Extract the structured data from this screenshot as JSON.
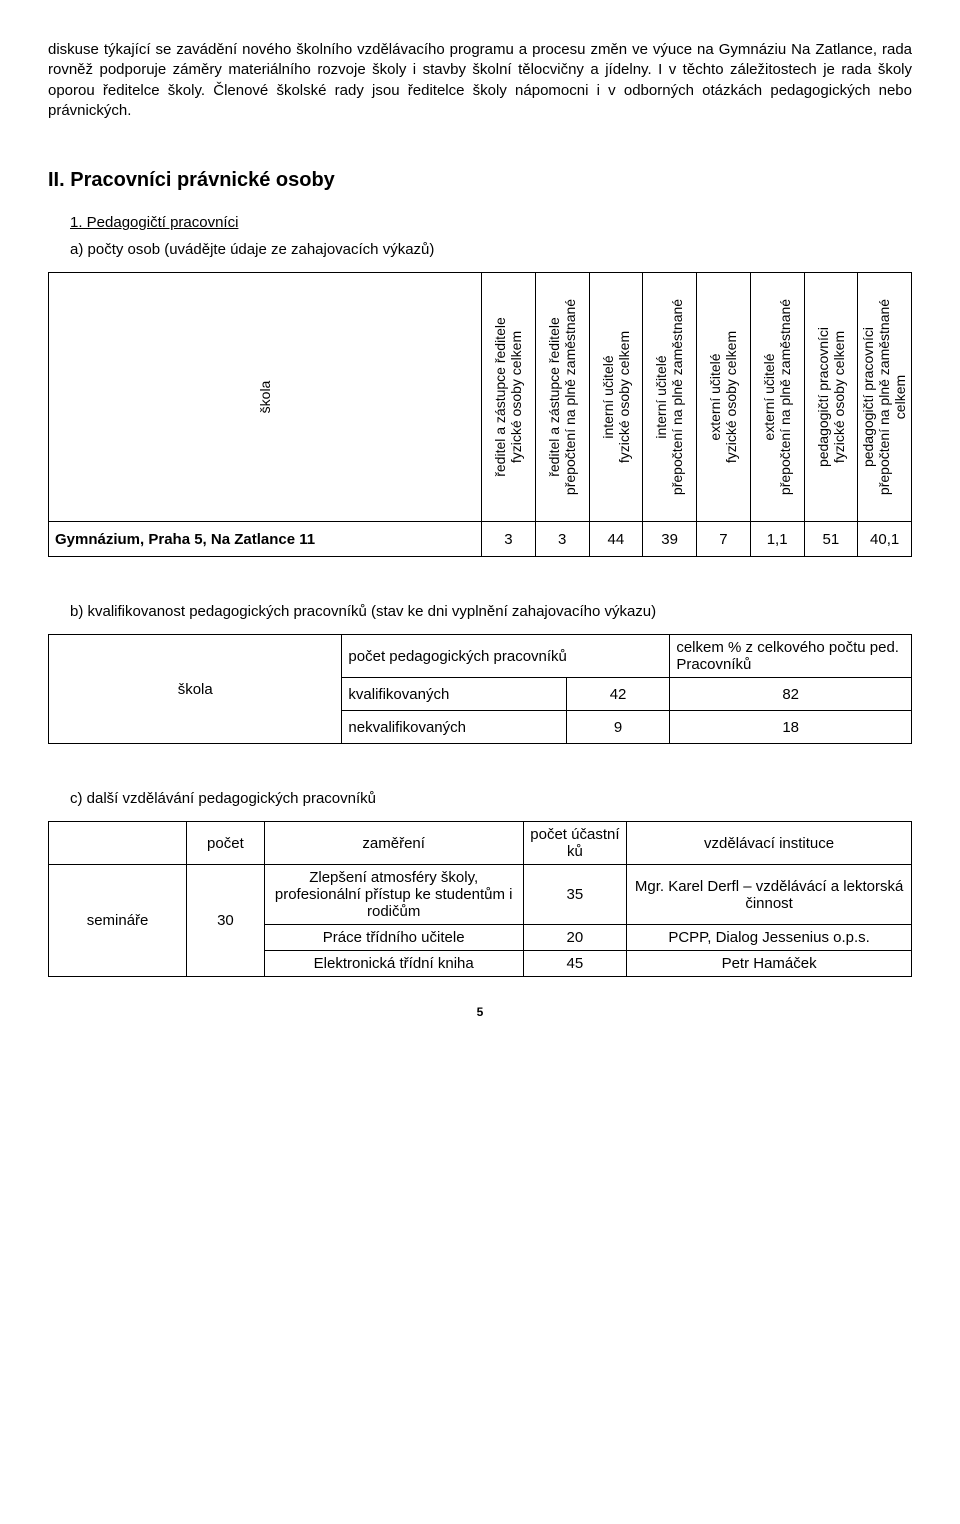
{
  "intro_para": "diskuse týkající se zavádění nového školního vzdělávacího programu a procesu změn ve výuce na Gymnáziu Na Zatlance, rada rovněž podporuje záměry materiálního rozvoje školy i stavby školní tělocvičny a jídelny. I v těchto záležitostech je rada školy oporou ředitelce školy. Členové školské rady jsou ředitelce školy nápomocni i v odborných otázkách pedagogických nebo právnických.",
  "section_title": "II. Pracovníci právnické osoby",
  "sub1_title": "1. Pedagogičtí pracovníci",
  "sub1a_title": "a) počty osob (uvádějte údaje ze zahajovacích výkazů)",
  "table_a": {
    "headers": [
      "škola",
      "ředitel a zástupce ředitele\nfyzické osoby celkem",
      "ředitel a zástupce ředitele\npřepočtení na plně zaměstnané",
      "interní učitelé\nfyzické osoby celkem",
      "interní učitelé\npřepočtení na plně zaměstnané",
      "externí učitelé\nfyzické osoby celkem",
      "externí učitelé\npřepočtení na plně zaměstnané",
      "pedagogičtí pracovníci\nfyzické osoby celkem",
      "pedagogičtí pracovníci\npřepočtení na plně zaměstnané\ncelkem"
    ],
    "row_label": "Gymnázium, Praha 5, Na Zatlance 11",
    "values": [
      "3",
      "3",
      "44",
      "39",
      "7",
      "1,1",
      "51",
      "40,1"
    ]
  },
  "sub1b_title": "b) kvalifikovanost pedagogických pracovníků (stav ke dni vyplnění zahajovacího výkazu)",
  "table_b": {
    "h_skola": "škola",
    "h_pocet": "počet pedagogických pracovníků",
    "h_pct": "celkem % z celkového počtu ped. Pracovníků",
    "r1_label": "kvalifikovaných",
    "r1_v1": "42",
    "r1_v2": "82",
    "r2_label": "nekvalifikovaných",
    "r2_v1": "9",
    "r2_v2": "18"
  },
  "sub1c_title": "c) další vzdělávání pedagogických pracovníků",
  "table_c": {
    "h1": "",
    "h2": "počet",
    "h3": "zaměření",
    "h4": "počet účastní ků",
    "h5": "vzdělávací instituce",
    "row_label": "semináře",
    "row_count": "30",
    "rows": [
      {
        "focus": "Zlepšení atmosféry školy, profesionální přístup ke studentům i rodičům",
        "participants": "35",
        "inst": "Mgr. Karel Derfl – vzdělávácí a lektorská činnost"
      },
      {
        "focus": "Práce třídního učitele",
        "participants": "20",
        "inst": "PCPP, Dialog Jessenius o.p.s."
      },
      {
        "focus": "Elektronická třídní kniha",
        "participants": "45",
        "inst": "Petr Hamáček"
      }
    ]
  },
  "page_number": "5"
}
